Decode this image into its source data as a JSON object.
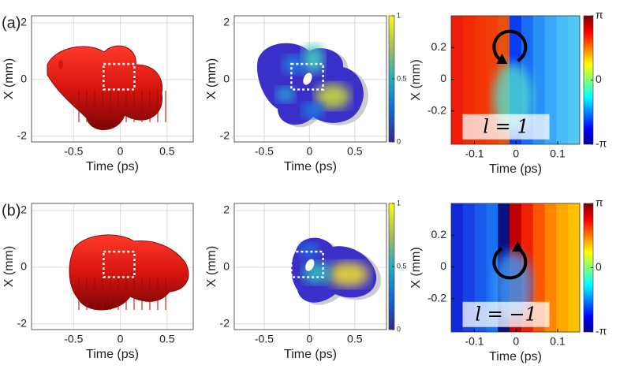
{
  "chart_data": [
    {
      "type": "isosurface",
      "panel_label": "(a)",
      "xlabel": "Time (ps)",
      "ylabel": "X (mm)",
      "xlim": [
        -0.95,
        0.78
      ],
      "ylim": [
        -2.2,
        2.25
      ],
      "xticks": [
        -0.5,
        0,
        0.5
      ],
      "yticks": [
        -2,
        0,
        2
      ],
      "grid": true
    },
    {
      "type": "density",
      "xlabel": "Time (ps)",
      "ylabel": "X (mm)",
      "xlim": [
        -0.83,
        0.85
      ],
      "ylim": [
        -2.2,
        2.25
      ],
      "xticks": [
        -0.5,
        0,
        0.5
      ],
      "yticks": [
        -2,
        0,
        2
      ],
      "grid": true,
      "colorbar_lim": [
        0,
        1
      ],
      "colorbar_ticks": [
        0,
        0.5,
        1
      ]
    },
    {
      "type": "phase",
      "xlabel": "Time (ps)",
      "ylabel": "X (mm)",
      "xlim": [
        -0.156,
        0.153
      ],
      "ylim": [
        -0.41,
        0.4
      ],
      "xticks": [
        -0.1,
        0,
        0.1
      ],
      "yticks": [
        -0.2,
        0,
        0.2
      ],
      "grid": false,
      "colorbar_lim": [
        -3.14159,
        3.14159
      ],
      "colorbar_ticks": [
        {
          "value": -3.14159,
          "label": "-π"
        },
        0,
        {
          "value": 3.14159,
          "label": "π"
        }
      ],
      "annotation": "l = 1"
    },
    {
      "type": "isosurface",
      "panel_label": "(b)",
      "xlabel": "Time (ps)",
      "ylabel": "X (mm)",
      "xlim": [
        -0.95,
        0.78
      ],
      "ylim": [
        -2.2,
        2.25
      ],
      "xticks": [
        -0.5,
        0,
        0.5
      ],
      "yticks": [
        -2,
        0,
        2
      ],
      "grid": true
    },
    {
      "type": "density",
      "xlabel": "Time (ps)",
      "ylabel": "X (mm)",
      "xlim": [
        -0.83,
        0.85
      ],
      "ylim": [
        -2.2,
        2.25
      ],
      "xticks": [
        -0.5,
        0,
        0.5
      ],
      "yticks": [
        -2,
        0,
        2
      ],
      "grid": true,
      "colorbar_lim": [
        0,
        1
      ],
      "colorbar_ticks": [
        0,
        0.5,
        1
      ]
    },
    {
      "type": "phase",
      "xlabel": "Time (ps)",
      "ylabel": "X (mm)",
      "xlim": [
        -0.156,
        0.153
      ],
      "ylim": [
        -0.41,
        0.4
      ],
      "xticks": [
        -0.1,
        0,
        0.1
      ],
      "yticks": [
        -0.2,
        0,
        0.2
      ],
      "grid": false,
      "colorbar_lim": [
        -3.14159,
        3.14159
      ],
      "colorbar_ticks": [
        {
          "value": -3.14159,
          "label": "-π"
        },
        0,
        {
          "value": 3.14159,
          "label": "π"
        }
      ],
      "annotation": "l = −1"
    }
  ]
}
